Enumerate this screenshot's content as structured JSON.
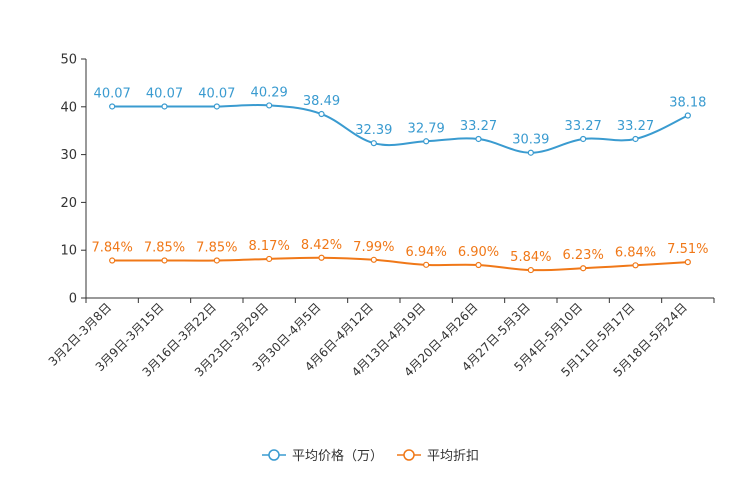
{
  "chart_data": {
    "type": "line",
    "categories": [
      "3月2日-3月8日",
      "3月9日-3月15日",
      "3月16日-3月22日",
      "3月23日-3月29日",
      "3月30日-4月5日",
      "4月6日-4月12日",
      "4月13日-4月19日",
      "4月20日-4月26日",
      "4月27日-5月3日",
      "5月4日-5月10日",
      "5月11日-5月17日",
      "5月18日-5月24日"
    ],
    "series": [
      {
        "name": "平均价格（万）",
        "color": "#3a9bd0",
        "values": [
          40.07,
          40.07,
          40.07,
          40.29,
          38.49,
          32.39,
          32.79,
          33.27,
          30.39,
          33.27,
          33.27,
          38.18
        ],
        "labels": [
          "40.07",
          "40.07",
          "40.07",
          "40.29",
          "38.49",
          "32.39",
          "32.79",
          "33.27",
          "30.39",
          "33.27",
          "33.27",
          "38.18"
        ]
      },
      {
        "name": "平均折扣",
        "color": "#f07818",
        "values": [
          7.84,
          7.85,
          7.85,
          8.17,
          8.42,
          7.99,
          6.94,
          6.9,
          5.84,
          6.23,
          6.84,
          7.51
        ],
        "labels": [
          "7.84%",
          "7.85%",
          "7.85%",
          "8.17%",
          "8.42%",
          "7.99%",
          "6.94%",
          "6.90%",
          "5.84%",
          "6.23%",
          "6.84%",
          "7.51%"
        ]
      }
    ],
    "ylim": [
      0,
      50
    ],
    "yticks": [
      0,
      10,
      20,
      30,
      40,
      50
    ],
    "title": "",
    "xlabel": "",
    "ylabel": "",
    "legend_position": "bottom-center",
    "grid": false
  }
}
